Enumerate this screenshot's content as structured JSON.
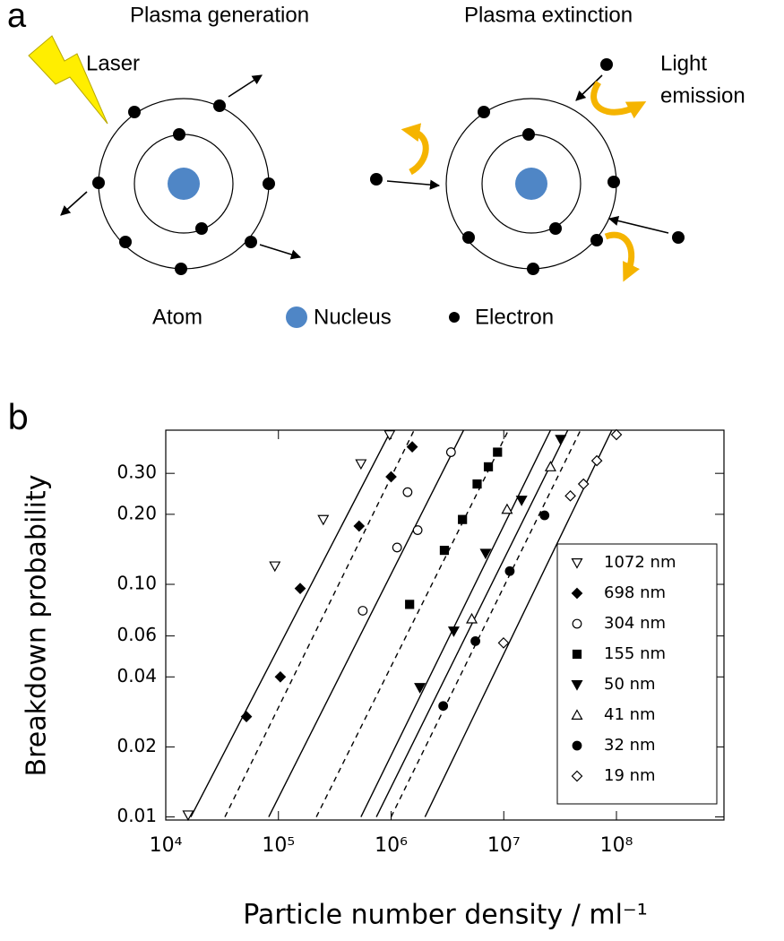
{
  "panel_a": {
    "label": "a",
    "titles": [
      "Plasma generation",
      "Plasma extinction"
    ],
    "laser": "Laser",
    "light_emission": [
      "Light",
      "emission"
    ],
    "legend": {
      "atom": "Atom",
      "nucleus": "Nucleus",
      "electron": "Electron"
    }
  },
  "chart_data": {
    "type": "scatter",
    "panel_label": "b",
    "xlabel": "Particle number density / ml⁻¹",
    "ylabel": "Breakdown  probability",
    "xscale": "log",
    "yscale": "log",
    "xlim": [
      10000,
      900000000
    ],
    "ylim": [
      0.0097,
      0.46
    ],
    "xticks": [
      {
        "value": 10000,
        "label": "10⁴"
      },
      {
        "value": 100000,
        "label": "10⁵"
      },
      {
        "value": 1000000,
        "label": "10⁶"
      },
      {
        "value": 10000000,
        "label": "10⁷"
      },
      {
        "value": 100000000,
        "label": "10⁸"
      }
    ],
    "yticks": [
      0.01,
      0.02,
      0.04,
      0.06,
      {
        "value": 0.1,
        "label": "0.10"
      },
      {
        "value": 0.2,
        "label": "0.20"
      },
      {
        "value": 0.3,
        "label": "0.30"
      }
    ],
    "legend": "lower right",
    "series": [
      {
        "name": "1072 nm",
        "marker": "triangle-down",
        "filled": false,
        "color": "#000000",
        "x": [
          15800,
          93000,
          250000,
          540000,
          970000
        ],
        "values": [
          0.0102,
          0.12,
          0.19,
          0.33,
          0.44
        ],
        "fit": {
          "x": [
            16700,
            1000000
          ],
          "y": [
            0.01,
            0.46
          ],
          "dashed": false
        }
      },
      {
        "name": "698 nm",
        "marker": "diamond",
        "filled": true,
        "color": "#000000",
        "x": [
          52000,
          104000,
          156000,
          520000,
          1000000,
          1540000
        ],
        "values": [
          0.027,
          0.04,
          0.096,
          0.178,
          0.29,
          0.39
        ],
        "fit": {
          "x": [
            33500,
            1600000
          ],
          "y": [
            0.01,
            0.46
          ],
          "dashed": true
        }
      },
      {
        "name": "304 nm",
        "marker": "circle",
        "filled": false,
        "color": "#000000",
        "x": [
          560000,
          1130000,
          1400000,
          1720000,
          3400000
        ],
        "values": [
          0.077,
          0.144,
          0.249,
          0.171,
          0.37
        ],
        "fit": {
          "x": [
            82000,
            4400000
          ],
          "y": [
            0.01,
            0.46
          ],
          "dashed": false
        }
      },
      {
        "name": "155 nm",
        "marker": "square",
        "filled": true,
        "color": "#000000",
        "x": [
          1460000,
          2970000,
          4300000,
          5800000,
          7300000,
          8800000
        ],
        "values": [
          0.082,
          0.14,
          0.19,
          0.27,
          0.32,
          0.37
        ],
        "fit": {
          "x": [
            217000,
            11000000
          ],
          "y": [
            0.01,
            0.46
          ],
          "dashed": true
        }
      },
      {
        "name": "50 nm",
        "marker": "triangle-down",
        "filled": true,
        "color": "#000000",
        "x": [
          1800000,
          3600000,
          6900000,
          14400000,
          32000000
        ],
        "values": [
          0.036,
          0.063,
          0.136,
          0.23,
          0.42
        ],
        "fit": {
          "x": [
            540000,
            26000000
          ],
          "y": [
            0.01,
            0.46
          ],
          "dashed": false
        }
      },
      {
        "name": "41 nm",
        "marker": "triangle-up",
        "filled": false,
        "color": "#000000",
        "x": [
          5200000,
          10700000,
          26000000
        ],
        "values": [
          0.071,
          0.21,
          0.32
        ],
        "fit": {
          "x": [
            740000,
            37000000
          ],
          "y": [
            0.01,
            0.46
          ],
          "dashed": false
        }
      },
      {
        "name": "32 nm",
        "marker": "circle",
        "filled": true,
        "color": "#000000",
        "x": [
          2900000,
          5600000,
          11300000,
          23000000
        ],
        "values": [
          0.03,
          0.057,
          0.114,
          0.198
        ],
        "fit": {
          "x": [
            1000000,
            48000000
          ],
          "y": [
            0.01,
            0.46
          ],
          "dashed": true
        }
      },
      {
        "name": "19 nm",
        "marker": "diamond",
        "filled": false,
        "color": "#000000",
        "x": [
          9950000,
          39000000,
          51000000,
          67000000,
          100000000
        ],
        "values": [
          0.056,
          0.24,
          0.27,
          0.34,
          0.44
        ],
        "fit": {
          "x": [
            2000000,
            91000000
          ],
          "y": [
            0.01,
            0.46
          ],
          "dashed": false
        }
      }
    ]
  }
}
